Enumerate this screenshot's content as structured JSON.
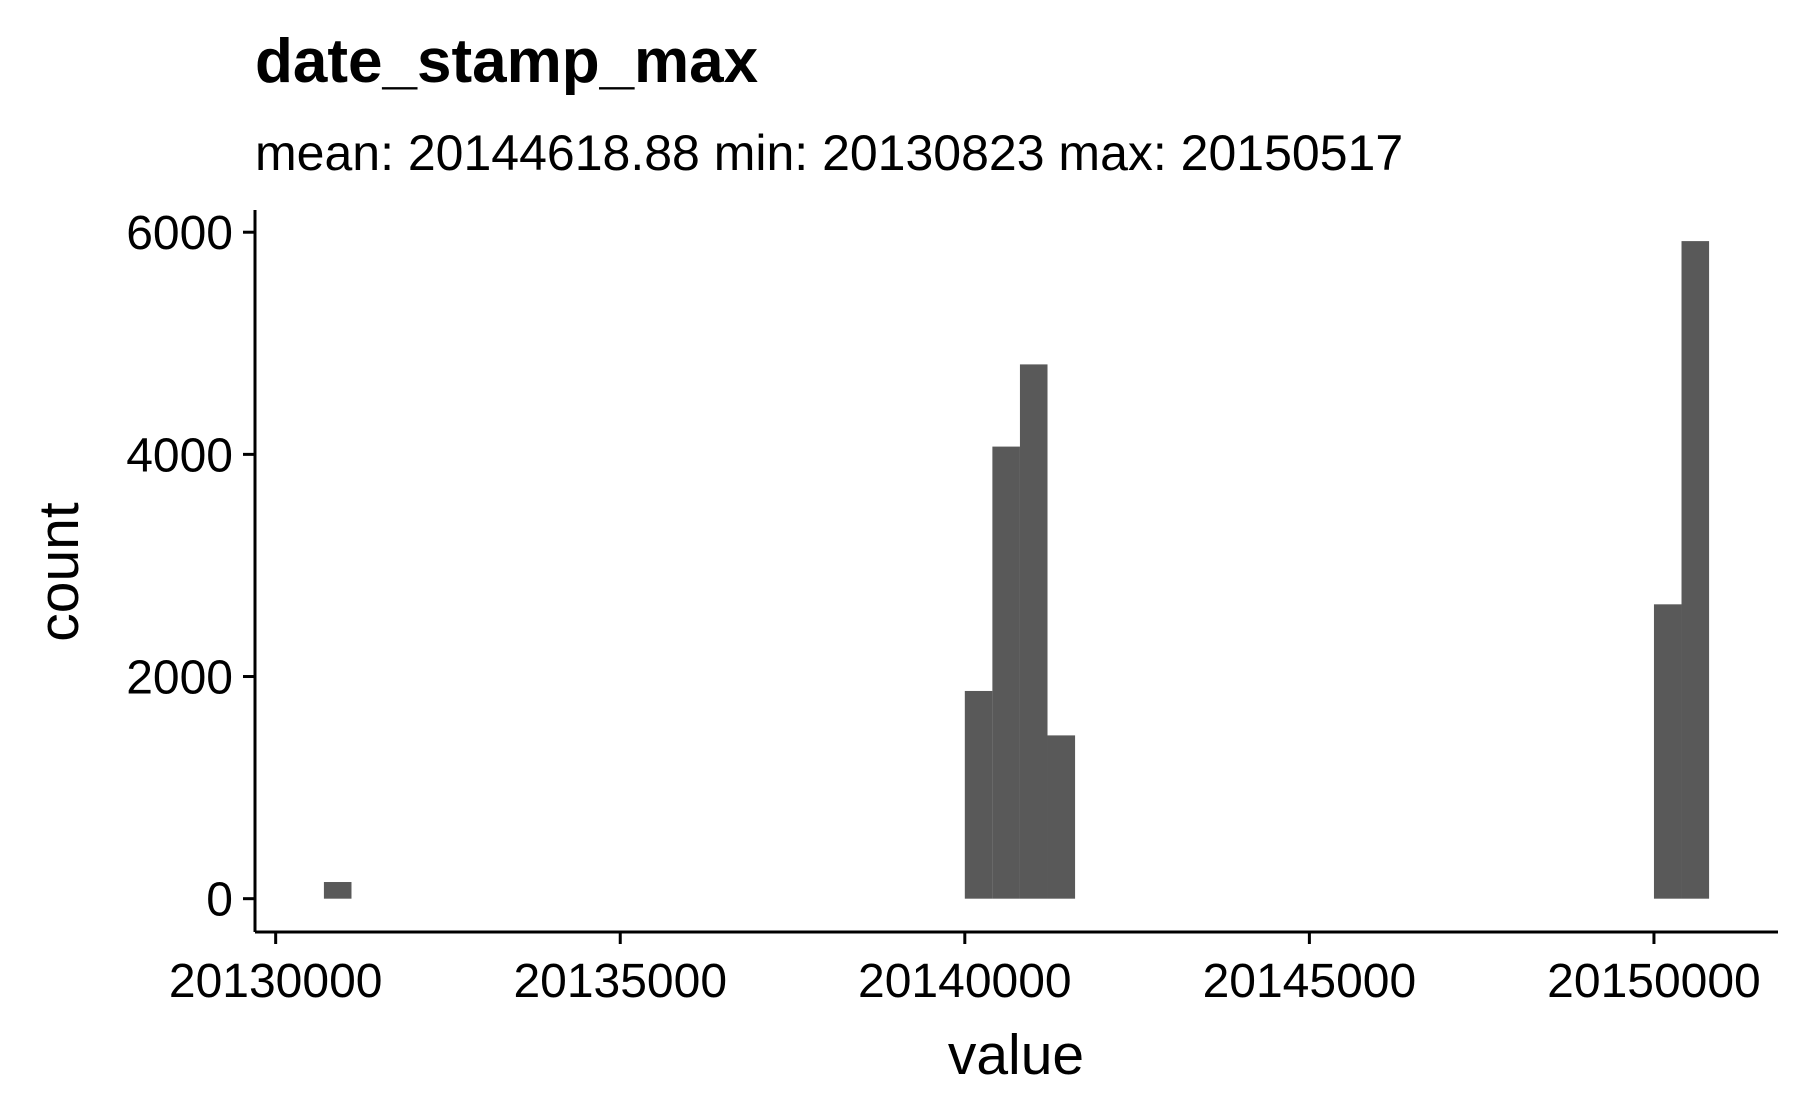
{
  "chart_data": {
    "type": "bar",
    "title": "date_stamp_max",
    "subtitle": "mean: 20144618.88   min: 20130823   max: 20150517",
    "xlabel": "value",
    "ylabel": "count",
    "xlim": [
      20129700,
      20151800
    ],
    "ylim": [
      -300,
      6200
    ],
    "x_ticks": [
      20130000,
      20135000,
      20140000,
      20145000,
      20150000
    ],
    "x_tick_labels": [
      "20130000",
      "20135000",
      "20140000",
      "20145000",
      "20150000"
    ],
    "y_ticks": [
      0,
      2000,
      4000,
      6000
    ],
    "y_tick_labels": [
      "0",
      "2000",
      "4000",
      "6000"
    ],
    "bin_width": 400,
    "bars": [
      {
        "x0": 20130700,
        "x1": 20131100,
        "count": 150
      },
      {
        "x0": 20140000,
        "x1": 20140400,
        "count": 1870
      },
      {
        "x0": 20140400,
        "x1": 20140800,
        "count": 4070
      },
      {
        "x0": 20140800,
        "x1": 20141200,
        "count": 4810
      },
      {
        "x0": 20141200,
        "x1": 20141600,
        "count": 1470
      },
      {
        "x0": 20150000,
        "x1": 20150400,
        "count": 2650
      },
      {
        "x0": 20150400,
        "x1": 20150800,
        "count": 5920
      }
    ],
    "bar_color": "#595959",
    "grid": false,
    "legend": "none"
  }
}
